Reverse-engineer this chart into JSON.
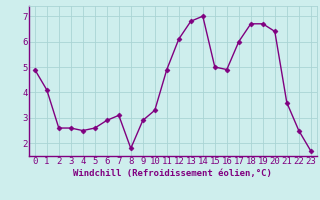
{
  "x": [
    0,
    1,
    2,
    3,
    4,
    5,
    6,
    7,
    8,
    9,
    10,
    11,
    12,
    13,
    14,
    15,
    16,
    17,
    18,
    19,
    20,
    21,
    22,
    23
  ],
  "y": [
    4.9,
    4.1,
    2.6,
    2.6,
    2.5,
    2.6,
    2.9,
    3.1,
    1.8,
    2.9,
    3.3,
    4.9,
    6.1,
    6.8,
    7.0,
    5.0,
    4.9,
    6.0,
    6.7,
    6.7,
    6.4,
    3.6,
    2.5,
    1.7
  ],
  "line_color": "#800080",
  "marker": "D",
  "marker_size": 2.5,
  "line_width": 1.0,
  "bg_color": "#ceeeed",
  "grid_color": "#aad4d4",
  "xlabel": "Windchill (Refroidissement éolien,°C)",
  "xlabel_color": "#800080",
  "xlabel_fontsize": 6.5,
  "tick_color": "#800080",
  "tick_fontsize": 6.5,
  "ylim": [
    1.5,
    7.4
  ],
  "yticks": [
    2,
    3,
    4,
    5,
    6,
    7
  ],
  "xlim": [
    -0.5,
    23.5
  ]
}
